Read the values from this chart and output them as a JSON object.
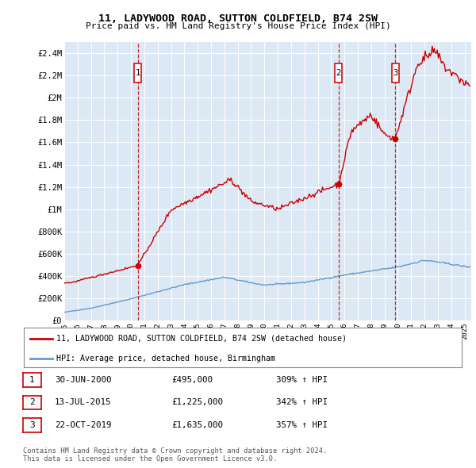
{
  "title": "11, LADYWOOD ROAD, SUTTON COLDFIELD, B74 2SW",
  "subtitle": "Price paid vs. HM Land Registry's House Price Index (HPI)",
  "plot_bg_color": "#dce9f5",
  "grid_color": "#c0d0e8",
  "ylabel_ticks": [
    "£0",
    "£200K",
    "£400K",
    "£600K",
    "£800K",
    "£1M",
    "£1.2M",
    "£1.4M",
    "£1.6M",
    "£1.8M",
    "£2M",
    "£2.2M",
    "£2.4M"
  ],
  "ytick_values": [
    0,
    200000,
    400000,
    600000,
    800000,
    1000000,
    1200000,
    1400000,
    1600000,
    1800000,
    2000000,
    2200000,
    2400000
  ],
  "ylim": [
    0,
    2500000
  ],
  "xlim_start": 1995.0,
  "xlim_end": 2025.5,
  "xtick_years": [
    1995,
    1996,
    1997,
    1998,
    1999,
    2000,
    2001,
    2002,
    2003,
    2004,
    2005,
    2006,
    2007,
    2008,
    2009,
    2010,
    2011,
    2012,
    2013,
    2014,
    2015,
    2016,
    2017,
    2018,
    2019,
    2020,
    2021,
    2022,
    2023,
    2024,
    2025
  ],
  "house_color": "#cc0000",
  "hpi_color": "#6699cc",
  "sale_markers": [
    {
      "num": 1,
      "year": 2000.5,
      "price": 495000
    },
    {
      "num": 2,
      "year": 2015.55,
      "price": 1225000
    },
    {
      "num": 3,
      "year": 2019.8,
      "price": 1635000
    }
  ],
  "legend_house": "11, LADYWOOD ROAD, SUTTON COLDFIELD, B74 2SW (detached house)",
  "legend_hpi": "HPI: Average price, detached house, Birmingham",
  "footnote": "Contains HM Land Registry data © Crown copyright and database right 2024.\nThis data is licensed under the Open Government Licence v3.0.",
  "table_rows": [
    {
      "num": 1,
      "date": "30-JUN-2000",
      "price": "£495,000",
      "hpi": "309% ↑ HPI"
    },
    {
      "num": 2,
      "date": "13-JUL-2015",
      "price": "£1,225,000",
      "hpi": "342% ↑ HPI"
    },
    {
      "num": 3,
      "date": "22-OCT-2019",
      "price": "£1,635,000",
      "hpi": "357% ↑ HPI"
    }
  ]
}
